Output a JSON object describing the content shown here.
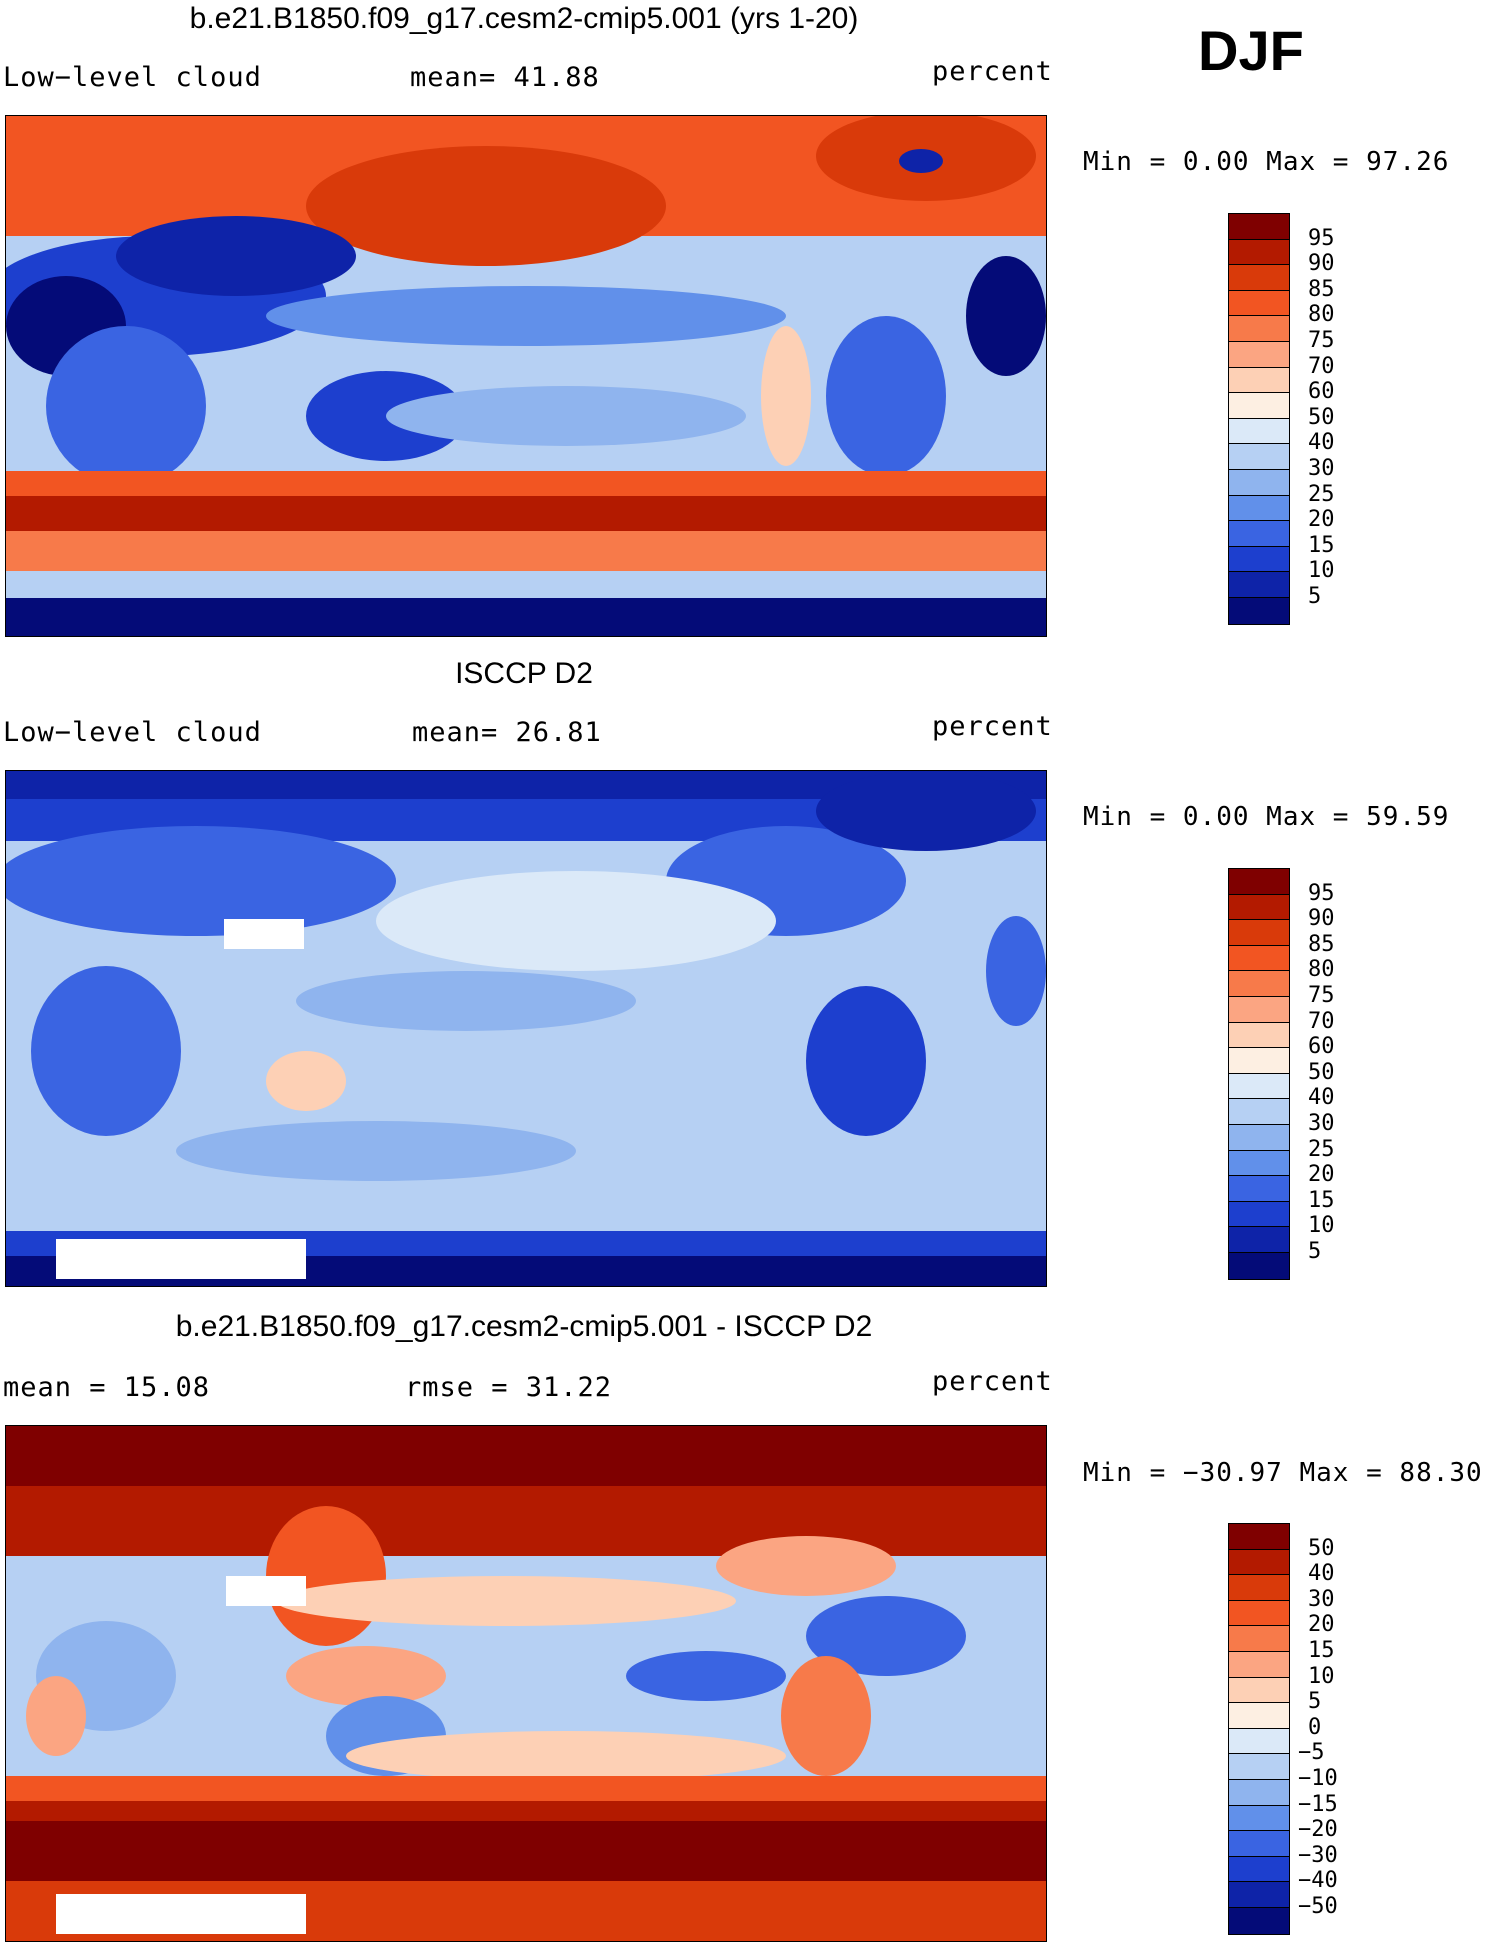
{
  "season": "DJF",
  "panels": [
    {
      "title": "b.e21.B1850.f09_g17.cesm2-cmip5.001 (yrs 1-20)",
      "left": "Low−level cloud",
      "center": "mean=   41.88",
      "right": "percent",
      "minmax": "Min =    0.00 Max =   97.26",
      "levels": [
        "95",
        "90",
        "85",
        "80",
        "75",
        "70",
        "60",
        "50",
        "40",
        "30",
        "25",
        "20",
        "15",
        "10",
        "5"
      ],
      "colors": [
        "#7f0000",
        "#b31a00",
        "#d93a0a",
        "#f25522",
        "#f77a4a",
        "#fba582",
        "#fdd0b5",
        "#fdefe2",
        "#dbe9f8",
        "#b6d0f3",
        "#8fb4ee",
        "#6190ea",
        "#3a64e2",
        "#1d3fce",
        "#0e23a8",
        "#040b78"
      ]
    },
    {
      "title": "ISCCP D2",
      "left": "Low−level cloud",
      "center": "mean=   26.81",
      "right": "percent",
      "minmax": "Min =    0.00 Max =   59.59",
      "levels": [
        "95",
        "90",
        "85",
        "80",
        "75",
        "70",
        "60",
        "50",
        "40",
        "30",
        "25",
        "20",
        "15",
        "10",
        "5"
      ],
      "colors": [
        "#7f0000",
        "#b31a00",
        "#d93a0a",
        "#f25522",
        "#f77a4a",
        "#fba582",
        "#fdd0b5",
        "#fdefe2",
        "#dbe9f8",
        "#b6d0f3",
        "#8fb4ee",
        "#6190ea",
        "#3a64e2",
        "#1d3fce",
        "#0e23a8",
        "#040b78"
      ]
    },
    {
      "title": "b.e21.B1850.f09_g17.cesm2-cmip5.001 - ISCCP D2",
      "left": "mean =   15.08",
      "center": "rmse =   31.22",
      "right": "percent",
      "minmax": "Min = −30.97 Max =   88.30",
      "levels": [
        "50",
        "40",
        "30",
        "20",
        "15",
        "10",
        "5",
        "0",
        "−5",
        "−10",
        "−15",
        "−20",
        "−30",
        "−40",
        "−50"
      ],
      "colors": [
        "#7f0000",
        "#b31a00",
        "#d93a0a",
        "#f25522",
        "#f77a4a",
        "#fba582",
        "#fdd0b5",
        "#fdefe2",
        "#dbe9f8",
        "#b6d0f3",
        "#8fb4ee",
        "#6190ea",
        "#3a64e2",
        "#1d3fce",
        "#0e23a8",
        "#040b78"
      ]
    }
  ]
}
